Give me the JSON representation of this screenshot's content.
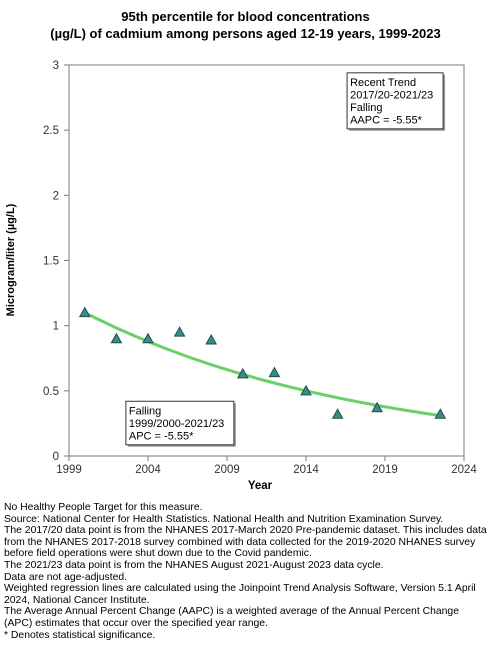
{
  "chart_data": {
    "type": "scatter",
    "title_lines": [
      "95th percentile for blood concentrations",
      "(µg/L) of cadmium among persons aged 12-19 years, 1999-2023"
    ],
    "xlabel": "Year",
    "ylabel": "Microgram/liter (µg/L)",
    "xlim": [
      1999,
      2024
    ],
    "ylim": [
      0,
      3
    ],
    "x_ticks": [
      1999,
      2004,
      2009,
      2014,
      2019,
      2024
    ],
    "y_ticks": [
      0,
      0.5,
      1,
      1.5,
      2,
      2.5,
      3
    ],
    "y_tick_labels": [
      "0",
      "0.5",
      "1",
      "1.5",
      "2",
      "2.5",
      "3"
    ],
    "grid": false,
    "series": [
      {
        "marker": "triangle",
        "color": "#3b8c84",
        "points": [
          {
            "x": 2000,
            "y": 1.1
          },
          {
            "x": 2002,
            "y": 0.9
          },
          {
            "x": 2004,
            "y": 0.9
          },
          {
            "x": 2006,
            "y": 0.95
          },
          {
            "x": 2008,
            "y": 0.89
          },
          {
            "x": 2010,
            "y": 0.63
          },
          {
            "x": 2012,
            "y": 0.64
          },
          {
            "x": 2014,
            "y": 0.5
          },
          {
            "x": 2016,
            "y": 0.32
          },
          {
            "x": 2018.5,
            "y": 0.37
          },
          {
            "x": 2022.5,
            "y": 0.32
          }
        ]
      }
    ],
    "trend_line": {
      "type": "exponential",
      "color": "#6ccf6a",
      "start": {
        "x": 2000,
        "y": 1.1
      },
      "end": {
        "x": 2022.5,
        "y": 0.31
      }
    },
    "annotations": [
      {
        "id": "recent",
        "lines": [
          "Recent Trend",
          "2017/20-2021/23",
          "Falling",
          "AAPC = -5.55*"
        ],
        "anchor": {
          "x": 2016.6,
          "y": 2.94
        }
      },
      {
        "id": "overall",
        "lines": [
          "Falling",
          "1999/2000-2021/23",
          "APC = -5.55*"
        ],
        "anchor": {
          "x": 2002.6,
          "y": 0.42
        }
      }
    ]
  },
  "notes": [
    "No Healthy People Target for this measure.",
    "Source: National Center for Health Statistics. National Health and Nutrition Examination Survey.",
    "The 2017/20 data point is from the NHANES 2017-March 2020 Pre-pandemic dataset. This includes data from the NHANES 2017-2018 survey combined with data collected for the 2019-2020 NHANES survey before field operations were shut down due to the Covid pandemic.",
    "The 2021/23 data point is from the NHANES August 2021-August 2023 data cycle.",
    "Data are not age-adjusted.",
    "Weighted regression lines are calculated using the Joinpoint Trend Analysis Software, Version 5.1 April 2024, National Cancer Institute.",
    "The Average Annual Percent Change (AAPC) is a weighted average of the Annual Percent Change (APC) estimates that occur over the specified year range.",
    "* Denotes statistical significance."
  ]
}
